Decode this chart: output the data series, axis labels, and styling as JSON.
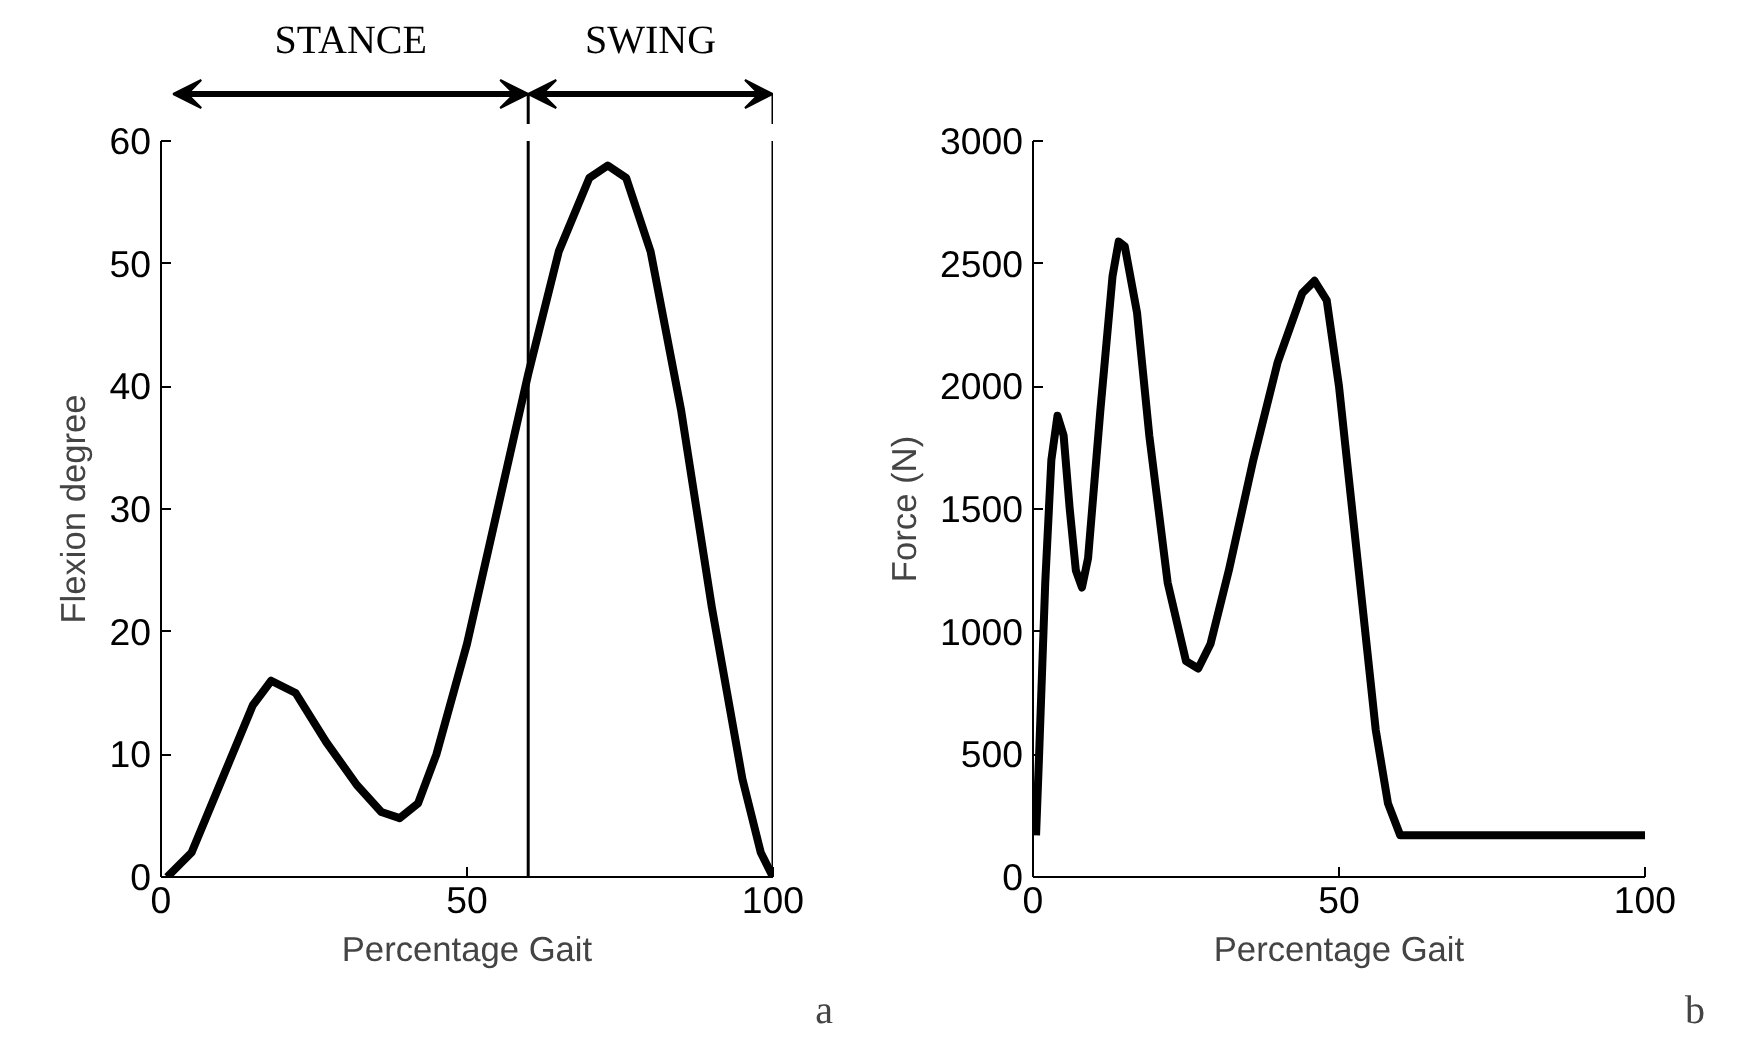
{
  "chart_data": [
    {
      "type": "line",
      "xlabel": "Percentage Gait",
      "ylabel": "Flexion degree",
      "xlim": [
        0,
        100
      ],
      "ylim": [
        0,
        60
      ],
      "xticks": [
        0,
        50,
        100
      ],
      "yticks": [
        0,
        10,
        20,
        30,
        40,
        50,
        60
      ],
      "grid": false,
      "x": [
        1,
        5,
        10,
        15,
        18,
        22,
        27,
        32,
        36,
        39,
        42,
        45,
        50,
        55,
        60,
        65,
        70,
        73,
        76,
        80,
        85,
        90,
        95,
        98,
        100
      ],
      "series": [
        {
          "color": "#000000",
          "values": [
            0,
            2,
            8,
            14,
            16,
            15,
            11,
            7.5,
            5.3,
            4.8,
            6,
            10,
            19,
            30,
            41,
            51,
            57,
            58,
            57,
            51,
            38,
            22,
            8,
            2,
            0
          ]
        }
      ],
      "ref_lines": [
        {
          "axis": "x",
          "value": 60,
          "color": "#000000"
        },
        {
          "axis": "x",
          "value": 100,
          "color": "#000000"
        }
      ],
      "annotations": [
        "STANCE",
        "SWING",
        "a"
      ]
    },
    {
      "type": "line",
      "xlabel": "Percentage Gait",
      "ylabel": "Force (N)",
      "xlim": [
        0,
        100
      ],
      "ylim": [
        0,
        3000
      ],
      "xticks": [
        0,
        50,
        100
      ],
      "yticks": [
        0,
        500,
        1000,
        1500,
        2000,
        2500,
        3000
      ],
      "grid": false,
      "x": [
        0.5,
        1,
        2,
        3,
        4,
        5,
        6,
        7,
        8,
        9,
        11,
        13,
        14,
        15,
        17,
        19,
        22,
        25,
        27,
        29,
        32,
        36,
        40,
        44,
        46,
        48,
        50,
        53,
        56,
        58,
        60,
        62,
        100
      ],
      "series": [
        {
          "color": "#000000",
          "values": [
            170,
            500,
            1200,
            1700,
            1880,
            1800,
            1500,
            1250,
            1180,
            1300,
            1900,
            2450,
            2590,
            2570,
            2300,
            1800,
            1200,
            880,
            850,
            950,
            1250,
            1700,
            2100,
            2380,
            2430,
            2350,
            2000,
            1300,
            600,
            300,
            170,
            170,
            170
          ]
        }
      ],
      "annotations": [
        "b"
      ]
    }
  ]
}
